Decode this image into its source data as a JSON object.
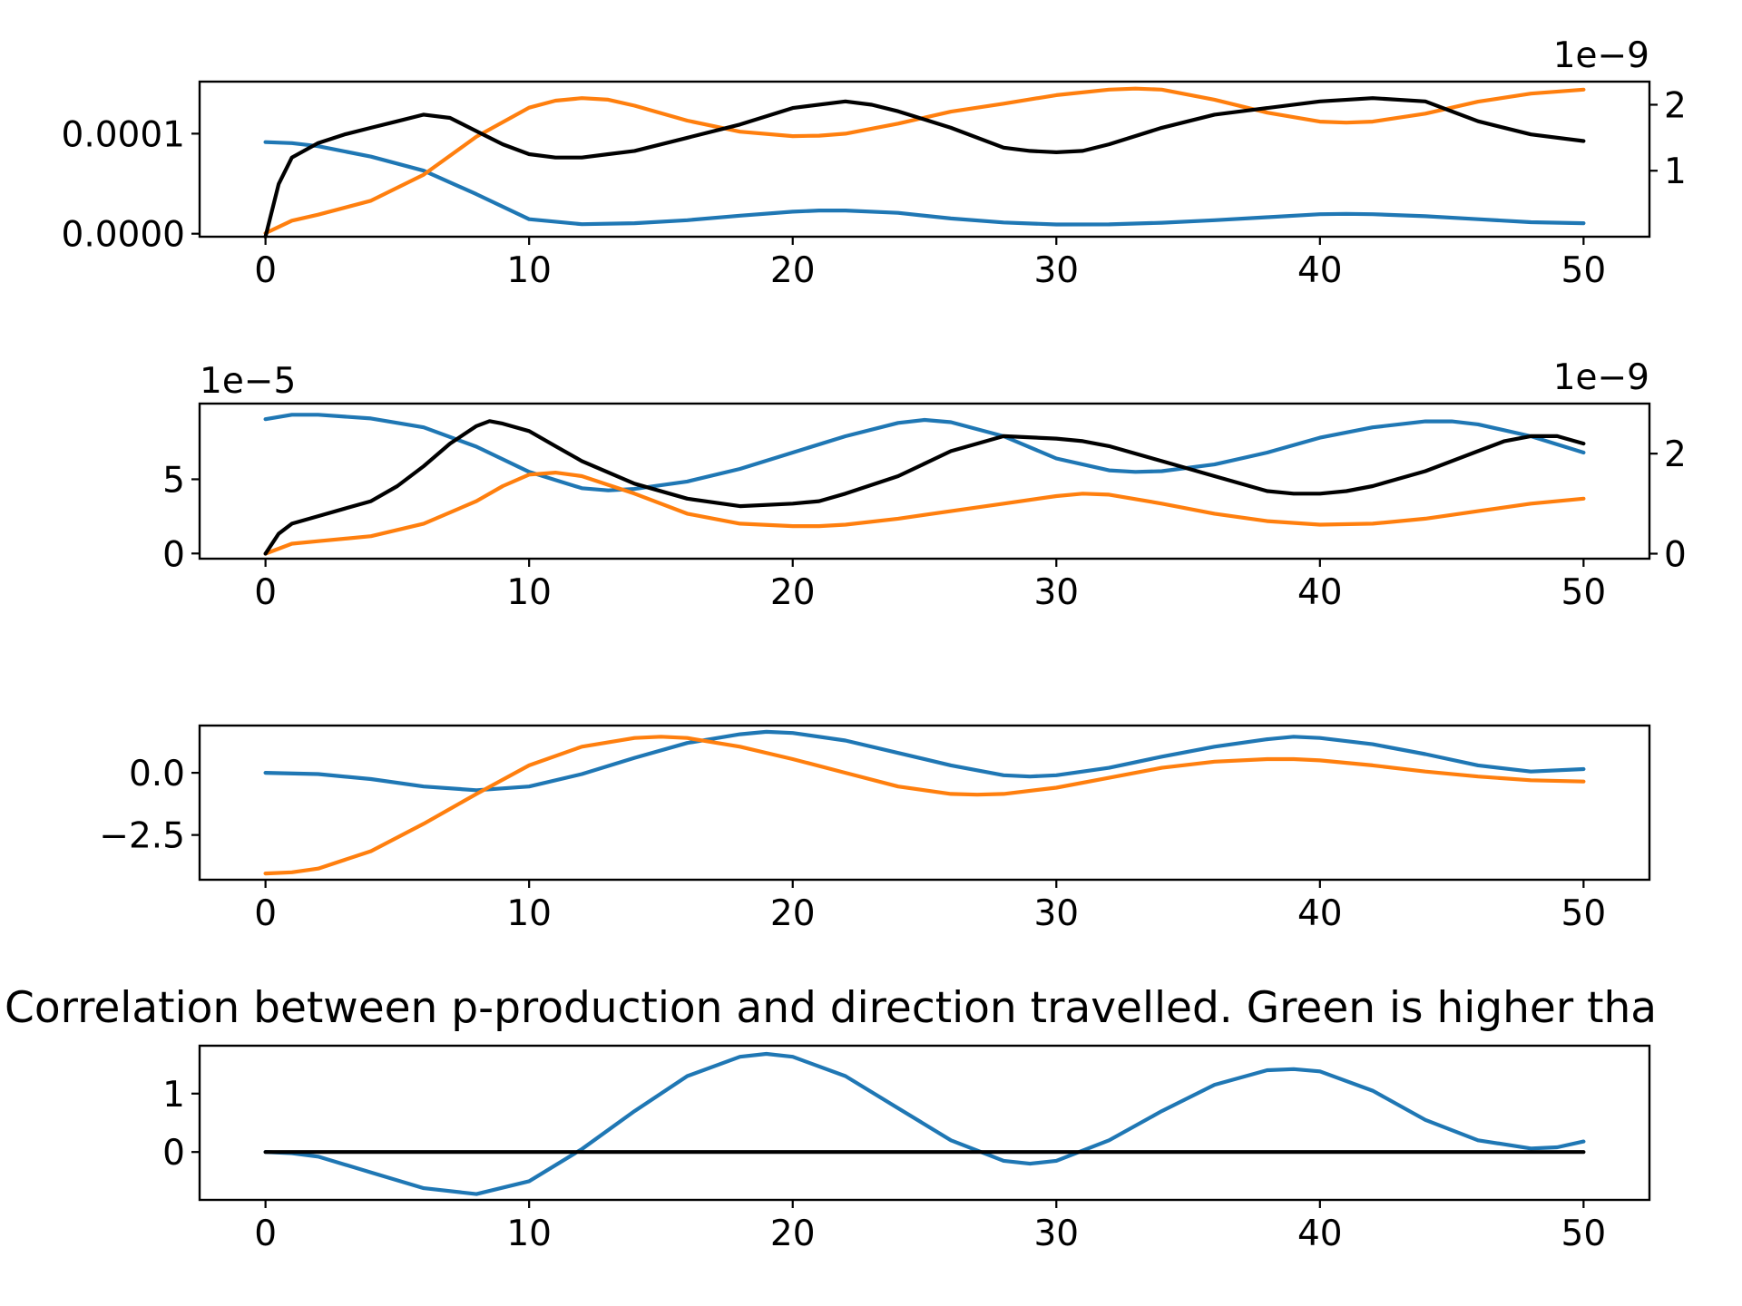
{
  "figure": {
    "title": "Correlation between p-production and direction travelled. Green is higher tha"
  },
  "colors": {
    "blue": "#1f77b4",
    "orange": "#ff7f0e",
    "black": "#000000"
  },
  "chart_data": [
    {
      "type": "line",
      "xlim": [
        -2.5,
        52.5
      ],
      "x_ticks": [
        0,
        10,
        20,
        30,
        40,
        50
      ],
      "x_tick_labels": [
        "0",
        "10",
        "20",
        "30",
        "40",
        "50"
      ],
      "y_left": {
        "lim": [
          -3e-06,
          0.000152
        ],
        "ticks": [
          0,
          0.0001
        ],
        "tick_labels": [
          "0.0000",
          "0.0001"
        ],
        "offset_text": ""
      },
      "y_right": {
        "lim": [
          0.0,
          2.35
        ],
        "ticks": [
          1,
          2
        ],
        "tick_labels": [
          "1",
          "2"
        ],
        "offset_text": "1e−9"
      },
      "series": [
        {
          "color": "blue",
          "axis": "left",
          "x": [
            0,
            1,
            2,
            4,
            6,
            8,
            10,
            12,
            14,
            16,
            18,
            20,
            21,
            22,
            24,
            26,
            28,
            30,
            32,
            34,
            36,
            38,
            40,
            41,
            42,
            44,
            46,
            48,
            50
          ],
          "y": [
            9.15e-05,
            9.05e-05,
            8.75e-05,
            7.7e-05,
            6.3e-05,
            3.95e-05,
            1.45e-05,
            9.5e-06,
            1.05e-05,
            1.35e-05,
            1.8e-05,
            2.2e-05,
            2.32e-05,
            2.32e-05,
            2.08e-05,
            1.52e-05,
            1.12e-05,
            9.2e-06,
            9.3e-06,
            1.1e-05,
            1.35e-05,
            1.65e-05,
            1.95e-05,
            1.98e-05,
            1.95e-05,
            1.75e-05,
            1.45e-05,
            1.15e-05,
            1.05e-05
          ]
        },
        {
          "color": "orange",
          "axis": "left",
          "x": [
            0,
            1,
            2,
            4,
            6,
            8,
            10,
            11,
            12,
            13,
            14,
            16,
            18,
            20,
            21,
            22,
            24,
            26,
            28,
            30,
            32,
            33,
            34,
            36,
            38,
            40,
            41,
            42,
            44,
            46,
            48,
            50
          ],
          "y": [
            5e-07,
            1.3e-05,
            1.9e-05,
            3.3e-05,
            5.9e-05,
            9.7e-05,
            0.000126,
            0.000133,
            0.0001355,
            0.000134,
            0.000128,
            0.000113,
            0.000102,
            9.75e-05,
            9.8e-05,
            0.0001,
            0.00011,
            0.000122,
            0.00013,
            0.0001385,
            0.000144,
            0.000145,
            0.000144,
            0.000134,
            0.000121,
            0.000112,
            0.000111,
            0.000112,
            0.00012,
            0.000132,
            0.00014,
            0.000144
          ]
        },
        {
          "color": "black",
          "axis": "right",
          "x": [
            0,
            0.5,
            1,
            2,
            3,
            4,
            5,
            6,
            7,
            8,
            9,
            10,
            11,
            12,
            13,
            14,
            16,
            18,
            20,
            22,
            23,
            24,
            26,
            28,
            29,
            30,
            31,
            32,
            34,
            36,
            38,
            40,
            42,
            44,
            46,
            48,
            50
          ],
          "y": [
            0.0,
            0.8,
            1.2,
            1.42,
            1.55,
            1.65,
            1.75,
            1.85,
            1.8,
            1.6,
            1.4,
            1.25,
            1.2,
            1.2,
            1.25,
            1.3,
            1.5,
            1.7,
            1.95,
            2.05,
            2.0,
            1.9,
            1.65,
            1.35,
            1.3,
            1.28,
            1.3,
            1.4,
            1.65,
            1.85,
            1.95,
            2.05,
            2.1,
            2.05,
            1.75,
            1.55,
            1.45
          ]
        }
      ]
    },
    {
      "type": "line",
      "xlim": [
        -2.5,
        52.5
      ],
      "x_ticks": [
        0,
        10,
        20,
        30,
        40,
        50
      ],
      "x_tick_labels": [
        "0",
        "10",
        "20",
        "30",
        "40",
        "50"
      ],
      "y_left": {
        "lim": [
          -0.35,
          10.1
        ],
        "ticks": [
          0,
          5
        ],
        "tick_labels": [
          "0",
          "5"
        ],
        "offset_text": "1e−5"
      },
      "y_right": {
        "lim": [
          -0.1,
          3.0
        ],
        "ticks": [
          0,
          2
        ],
        "tick_labels": [
          "0",
          "2"
        ],
        "offset_text": "1e−9"
      },
      "series": [
        {
          "color": "blue",
          "axis": "left",
          "x": [
            0,
            1,
            2,
            4,
            6,
            8,
            10,
            12,
            13,
            14,
            16,
            18,
            20,
            22,
            24,
            25,
            26,
            28,
            30,
            32,
            33,
            34,
            36,
            38,
            40,
            42,
            44,
            45,
            46,
            48,
            50
          ],
          "y": [
            9.05,
            9.35,
            9.35,
            9.1,
            8.5,
            7.2,
            5.5,
            4.4,
            4.25,
            4.35,
            4.85,
            5.7,
            6.8,
            7.9,
            8.8,
            9.0,
            8.85,
            7.9,
            6.4,
            5.6,
            5.5,
            5.55,
            6.0,
            6.8,
            7.8,
            8.5,
            8.9,
            8.9,
            8.7,
            7.9,
            6.8
          ]
        },
        {
          "color": "orange",
          "axis": "right",
          "x": [
            0,
            1,
            2,
            4,
            6,
            8,
            9,
            10,
            11,
            12,
            14,
            16,
            18,
            20,
            21,
            22,
            24,
            26,
            28,
            30,
            31,
            32,
            34,
            36,
            38,
            40,
            42,
            44,
            46,
            48,
            50
          ],
          "y": [
            0.0,
            0.2,
            0.25,
            0.35,
            0.6,
            1.05,
            1.35,
            1.58,
            1.62,
            1.55,
            1.2,
            0.8,
            0.6,
            0.55,
            0.55,
            0.58,
            0.7,
            0.85,
            1.0,
            1.15,
            1.2,
            1.18,
            1.0,
            0.8,
            0.65,
            0.58,
            0.6,
            0.7,
            0.85,
            1.0,
            1.1
          ]
        },
        {
          "color": "black",
          "axis": "right",
          "x": [
            0,
            0.5,
            1,
            2,
            3,
            4,
            5,
            6,
            7,
            8,
            8.5,
            9,
            10,
            11,
            12,
            14,
            16,
            18,
            20,
            21,
            22,
            24,
            26,
            28,
            30,
            31,
            32,
            34,
            36,
            38,
            39,
            40,
            41,
            42,
            44,
            46,
            47,
            48,
            49,
            50
          ],
          "y": [
            0.0,
            0.4,
            0.6,
            0.75,
            0.9,
            1.05,
            1.35,
            1.75,
            2.2,
            2.55,
            2.65,
            2.6,
            2.45,
            2.15,
            1.85,
            1.4,
            1.1,
            0.95,
            1.0,
            1.05,
            1.2,
            1.55,
            2.05,
            2.35,
            2.3,
            2.25,
            2.15,
            1.85,
            1.55,
            1.25,
            1.2,
            1.2,
            1.25,
            1.35,
            1.65,
            2.05,
            2.25,
            2.35,
            2.35,
            2.2
          ]
        }
      ]
    },
    {
      "type": "line",
      "xlim": [
        -2.5,
        52.5
      ],
      "x_ticks": [
        0,
        10,
        20,
        30,
        40,
        50
      ],
      "x_tick_labels": [
        "0",
        "10",
        "20",
        "30",
        "40",
        "50"
      ],
      "y_left": {
        "lim": [
          -4.3,
          1.9
        ],
        "ticks": [
          -2.5,
          0.0
        ],
        "tick_labels": [
          "−2.5",
          "0.0"
        ],
        "offset_text": ""
      },
      "series": [
        {
          "color": "blue",
          "axis": "left",
          "x": [
            0,
            2,
            4,
            6,
            8,
            10,
            12,
            14,
            16,
            18,
            19,
            20,
            22,
            24,
            26,
            28,
            29,
            30,
            32,
            34,
            36,
            38,
            39,
            40,
            42,
            44,
            46,
            48,
            50
          ],
          "y": [
            0.0,
            -0.05,
            -0.25,
            -0.55,
            -0.7,
            -0.55,
            -0.05,
            0.6,
            1.2,
            1.55,
            1.65,
            1.6,
            1.3,
            0.8,
            0.3,
            -0.1,
            -0.15,
            -0.1,
            0.2,
            0.65,
            1.05,
            1.35,
            1.45,
            1.4,
            1.15,
            0.75,
            0.3,
            0.05,
            0.15
          ]
        },
        {
          "color": "orange",
          "axis": "left",
          "x": [
            0,
            1,
            2,
            4,
            6,
            8,
            10,
            12,
            14,
            15,
            16,
            18,
            20,
            22,
            24,
            26,
            27,
            28,
            30,
            32,
            34,
            36,
            38,
            39,
            40,
            42,
            44,
            46,
            48,
            50
          ],
          "y": [
            -4.05,
            -4.0,
            -3.85,
            -3.15,
            -2.05,
            -0.85,
            0.3,
            1.05,
            1.4,
            1.45,
            1.4,
            1.05,
            0.55,
            0.0,
            -0.55,
            -0.85,
            -0.88,
            -0.85,
            -0.6,
            -0.2,
            0.2,
            0.45,
            0.55,
            0.55,
            0.5,
            0.3,
            0.05,
            -0.15,
            -0.3,
            -0.35
          ]
        }
      ]
    },
    {
      "type": "line",
      "title": "Correlation between p-production and direction travelled. Green is higher tha",
      "xlim": [
        -2.5,
        52.5
      ],
      "x_ticks": [
        0,
        10,
        20,
        30,
        40,
        50
      ],
      "x_tick_labels": [
        "0",
        "10",
        "20",
        "30",
        "40",
        "50"
      ],
      "y_left": {
        "lim": [
          -0.82,
          1.82
        ],
        "ticks": [
          0,
          1
        ],
        "tick_labels": [
          "0",
          "1"
        ],
        "offset_text": ""
      },
      "series": [
        {
          "color": "blue",
          "axis": "left",
          "x": [
            0,
            1,
            2,
            4,
            6,
            8,
            10,
            12,
            14,
            16,
            18,
            19,
            20,
            22,
            24,
            26,
            28,
            29,
            30,
            32,
            34,
            36,
            38,
            39,
            40,
            42,
            44,
            46,
            48,
            49,
            50
          ],
          "y": [
            0.0,
            -0.02,
            -0.08,
            -0.35,
            -0.62,
            -0.72,
            -0.5,
            0.05,
            0.7,
            1.3,
            1.63,
            1.68,
            1.63,
            1.3,
            0.75,
            0.2,
            -0.15,
            -0.2,
            -0.15,
            0.2,
            0.7,
            1.15,
            1.4,
            1.42,
            1.38,
            1.05,
            0.55,
            0.2,
            0.06,
            0.08,
            0.18
          ]
        },
        {
          "color": "black",
          "axis": "left",
          "x": [
            0,
            50
          ],
          "y": [
            0,
            0
          ]
        }
      ]
    }
  ]
}
